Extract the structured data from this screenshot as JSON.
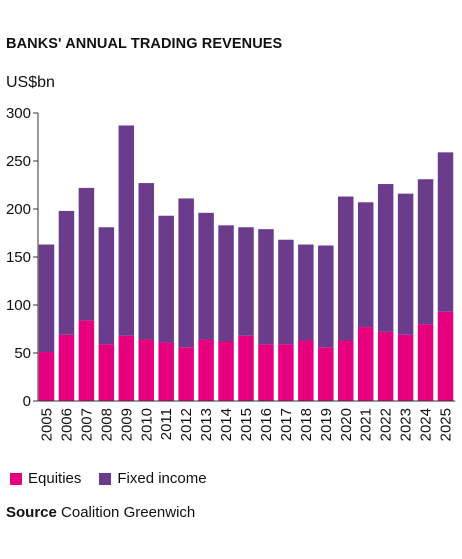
{
  "chart_data": {
    "type": "bar",
    "stacked": true,
    "title": "BANKS' ANNUAL TRADING REVENUES",
    "ylabel": "US$bn",
    "xlabel": "",
    "ylim": [
      0,
      300
    ],
    "yticks": [
      0,
      50,
      100,
      150,
      200,
      250,
      300
    ],
    "grid": false,
    "legend_position": "bottom-left",
    "categories": [
      "2005",
      "2006",
      "2007",
      "2008",
      "2009",
      "2010",
      "2011",
      "2012",
      "2013",
      "2014",
      "2015",
      "2016",
      "2017",
      "2018",
      "2019",
      "2020",
      "2021",
      "2022",
      "2023",
      "2024",
      "2025"
    ],
    "series": [
      {
        "name": "Equities",
        "color": "#e6007e",
        "values": [
          51,
          69,
          84,
          59,
          68,
          64,
          61,
          56,
          64,
          62,
          68,
          59,
          59,
          63,
          56,
          63,
          77,
          72,
          69,
          80,
          93
        ]
      },
      {
        "name": "Fixed income",
        "color": "#6b3b8c",
        "values": [
          112,
          129,
          138,
          122,
          219,
          163,
          132,
          155,
          132,
          121,
          113,
          120,
          109,
          100,
          106,
          150,
          130,
          154,
          147,
          151,
          166
        ]
      }
    ]
  },
  "source": {
    "label": "Source",
    "text": "Coalition Greenwich"
  }
}
